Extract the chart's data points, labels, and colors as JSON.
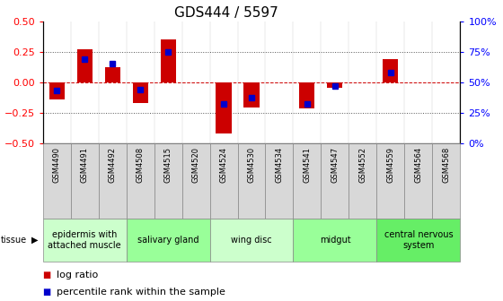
{
  "title": "GDS444 / 5597",
  "samples": [
    "GSM4490",
    "GSM4491",
    "GSM4492",
    "GSM4508",
    "GSM4515",
    "GSM4520",
    "GSM4524",
    "GSM4530",
    "GSM4534",
    "GSM4541",
    "GSM4547",
    "GSM4552",
    "GSM4559",
    "GSM4564",
    "GSM4568"
  ],
  "log_ratio": [
    -0.14,
    0.27,
    0.12,
    -0.17,
    0.35,
    0.0,
    -0.42,
    -0.21,
    0.0,
    -0.22,
    -0.05,
    0.0,
    0.19,
    0.0,
    0.0
  ],
  "percentile": [
    0.43,
    0.69,
    0.65,
    0.44,
    0.75,
    0.5,
    0.32,
    0.37,
    0.5,
    0.32,
    0.47,
    0.5,
    0.58,
    0.5,
    0.5
  ],
  "show_dot": [
    true,
    true,
    true,
    true,
    true,
    false,
    true,
    true,
    false,
    true,
    true,
    false,
    true,
    false,
    false
  ],
  "ylim": [
    -0.5,
    0.5
  ],
  "yticks_left": [
    -0.5,
    -0.25,
    0.0,
    0.25,
    0.5
  ],
  "yticks_right": [
    0,
    25,
    50,
    75,
    100
  ],
  "hlines_dotted": [
    -0.25,
    0.25
  ],
  "hline_dashed_red": 0.0,
  "tissue_groups": [
    {
      "label": "epidermis with\nattached muscle",
      "start": 0,
      "end": 3,
      "color": "#ccffcc"
    },
    {
      "label": "salivary gland",
      "start": 3,
      "end": 6,
      "color": "#99ff99"
    },
    {
      "label": "wing disc",
      "start": 6,
      "end": 9,
      "color": "#ccffcc"
    },
    {
      "label": "midgut",
      "start": 9,
      "end": 12,
      "color": "#99ff99"
    },
    {
      "label": "central nervous\nsystem",
      "start": 12,
      "end": 15,
      "color": "#66ee66"
    }
  ],
  "bar_color": "#cc0000",
  "dot_color": "#0000cc",
  "zero_line_color": "#cc0000",
  "hline_color": "#555555",
  "cell_bg_color": "#d8d8d8",
  "cell_border_color": "#888888",
  "title_fontsize": 11,
  "axis_fontsize": 8,
  "sample_fontsize": 6,
  "tissue_fontsize": 7,
  "legend_fontsize": 8
}
